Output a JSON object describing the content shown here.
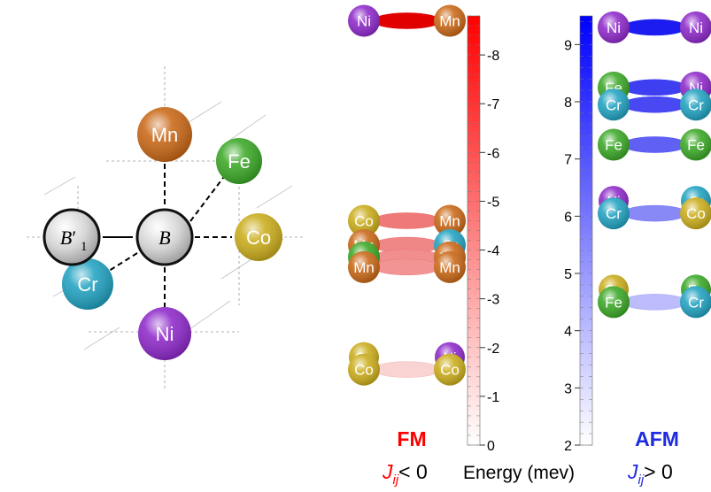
{
  "colors": {
    "Ni": "#8a22c8",
    "Mn": "#c8630f",
    "Fe": "#34a51f",
    "Co": "#c9aa14",
    "Cr": "#1a9fbf",
    "B": "#c7c7c7",
    "fm_bar": "#ff0000",
    "afm_bar": "#0000ff"
  },
  "lattice": {
    "sites": [
      {
        "id": "Mn",
        "label": "Mn"
      },
      {
        "id": "Fe",
        "label": "Fe"
      },
      {
        "id": "Co",
        "label": "Co"
      },
      {
        "id": "Cr",
        "label": "Cr"
      },
      {
        "id": "Ni",
        "label": "Ni"
      }
    ],
    "center_label": "B",
    "neighbor_label_main": "B",
    "neighbor_label_prime": "′",
    "neighbor_label_sub": "1"
  },
  "fm": {
    "label": "FM",
    "j_symbol": "J",
    "j_subscript": "ij",
    "j_relation": "< 0",
    "pairs": [
      {
        "left": "Ni",
        "right": "Mn",
        "energy": -8.7,
        "back_left": "",
        "back_right": ""
      },
      {
        "left": "Co",
        "right": "Mn",
        "energy": -4.6,
        "back_left": "",
        "back_right": ""
      },
      {
        "left": "Mn",
        "right": "Cr",
        "energy": -4.1,
        "back_left": "",
        "back_right": ""
      },
      {
        "left": "Fe",
        "right": "Mn",
        "energy": -3.85,
        "back_left": "",
        "back_right": ""
      },
      {
        "left": "Mn",
        "right": "Mn",
        "energy": -3.65,
        "back_left": "",
        "back_right": ""
      },
      {
        "left": "Co",
        "right": "Co",
        "energy": -1.55,
        "back_left": "Co",
        "back_right": "Ni"
      }
    ],
    "axis": {
      "min": 0,
      "max": 8.8,
      "ticks": [
        "-8",
        "-7",
        "-6",
        "-5",
        "-4",
        "-3",
        "-2",
        "-1",
        "0"
      ],
      "tick_values": [
        -8,
        -7,
        -6,
        -5,
        -4,
        -3,
        -2,
        -1,
        0
      ]
    }
  },
  "afm": {
    "label": "AFM",
    "j_symbol": "J",
    "j_subscript": "ij",
    "j_relation": "> 0",
    "pairs": [
      {
        "left": "Ni",
        "right": "Ni",
        "energy": 9.3,
        "back_left": "",
        "back_right": ""
      },
      {
        "left": "Fe",
        "right": "Ni",
        "energy": 8.25,
        "back_left": "",
        "back_right": ""
      },
      {
        "left": "Cr",
        "right": "Cr",
        "energy": 7.95,
        "back_left": "",
        "back_right": ""
      },
      {
        "left": "Fe",
        "right": "Fe",
        "energy": 7.25,
        "back_left": "",
        "back_right": ""
      },
      {
        "left": "Cr",
        "right": "Co",
        "energy": 6.05,
        "back_left": "Ni",
        "back_right": "Cr"
      },
      {
        "left": "Fe",
        "right": "Cr",
        "energy": 4.5,
        "back_left": "Co",
        "back_right": "Fe"
      }
    ],
    "axis": {
      "min": 2,
      "max": 9.5,
      "ticks": [
        "2",
        "3",
        "4",
        "5",
        "6",
        "7",
        "8",
        "9"
      ],
      "tick_values": [
        2,
        3,
        4,
        5,
        6,
        7,
        8,
        9
      ]
    }
  },
  "energy_axis_label": "Energy (mev)"
}
